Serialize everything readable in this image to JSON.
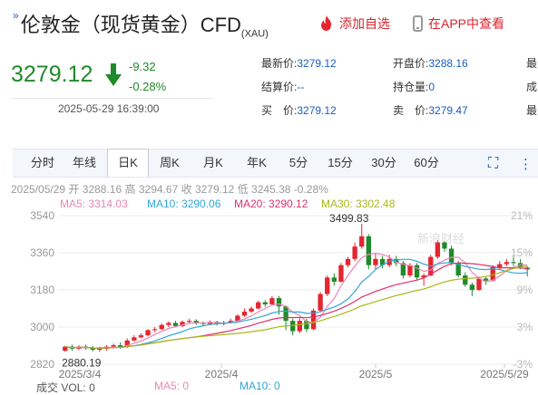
{
  "header": {
    "title": "伦敦金（现货黄金）CFD",
    "title_sub": "(XAU)",
    "add_favorite": "添加自选",
    "view_in_app": "在APP中查看"
  },
  "quote": {
    "price": "3279.12",
    "change": "-9.32",
    "change_pct": "-0.28%",
    "datetime": "2025-05-29 16:39:00",
    "fields": [
      {
        "label": "最新价:",
        "value": "3279.12"
      },
      {
        "label": "开盘价:",
        "value": "3288.16"
      },
      {
        "label": "最",
        "value": ""
      },
      {
        "label": "结算价:",
        "value": "--"
      },
      {
        "label": "持仓量:",
        "value": "0"
      },
      {
        "label": "成",
        "value": ""
      },
      {
        "label": "买　价:",
        "value": "3279.12"
      },
      {
        "label": "卖　价:",
        "value": "3279.47"
      },
      {
        "label": "最",
        "value": ""
      }
    ]
  },
  "tabs": [
    "分时",
    "年线",
    "日K",
    "周K",
    "月K",
    "年K",
    "5分",
    "15分",
    "30分",
    "60分"
  ],
  "active_tab": "日K",
  "ohlc_line": {
    "date": "2025/05/29",
    "open_label": "开",
    "open": "3288.16",
    "high_label": "高",
    "high": "3294.67",
    "close_label": "收",
    "close": "3279.12",
    "low_label": "低",
    "low": "3245.38",
    "pct": "-0.28%"
  },
  "ma": [
    {
      "label": "MA5:",
      "value": "3314.03",
      "color": "#e986b8"
    },
    {
      "label": "MA10:",
      "value": "3290.06",
      "color": "#2fa6d8"
    },
    {
      "label": "MA20:",
      "value": "3290.12",
      "color": "#e0306a"
    },
    {
      "label": "MA30:",
      "value": "3302.48",
      "color": "#a8b818"
    }
  ],
  "volume": {
    "label": "成交",
    "vol_label": "VOL:",
    "vol": "0",
    "ma5_label": "MA5:",
    "ma5": "0",
    "ma10_label": "MA10:",
    "ma10": "0"
  },
  "watermark": "新浪财经",
  "chart_data": {
    "type": "candlestick",
    "y_ticks": [
      "3540",
      "3360",
      "3180",
      "3000",
      "2820"
    ],
    "y_pct_ticks": [
      "21%",
      "15%",
      "9%",
      "3%",
      "-3%"
    ],
    "x_ticks": [
      "2025/3/4",
      "2025/4",
      "2025/5",
      "2025/5/29"
    ],
    "ylim": [
      2820,
      3540
    ],
    "max_label": "3499.83",
    "min_label": "2880.19",
    "up_color": "#e3262f",
    "down_color": "#1f8a2a",
    "candles": [
      [
        2885,
        2905,
        2880,
        2910
      ],
      [
        2905,
        2895,
        2885,
        2915
      ],
      [
        2895,
        2905,
        2888,
        2912
      ],
      [
        2905,
        2900,
        2890,
        2915
      ],
      [
        2900,
        2890,
        2882,
        2908
      ],
      [
        2890,
        2896,
        2880,
        2905
      ],
      [
        2895,
        2905,
        2885,
        2912
      ],
      [
        2905,
        2912,
        2898,
        2920
      ],
      [
        2912,
        2905,
        2895,
        2925
      ],
      [
        2905,
        2935,
        2900,
        2945
      ],
      [
        2935,
        2950,
        2928,
        2960
      ],
      [
        2950,
        2960,
        2945,
        2970
      ],
      [
        2960,
        2985,
        2955,
        2990
      ],
      [
        2985,
        2990,
        2975,
        3000
      ],
      [
        2990,
        3010,
        2985,
        3018
      ],
      [
        3010,
        3020,
        3000,
        3028
      ],
      [
        3020,
        3005,
        2998,
        3030
      ],
      [
        3005,
        3025,
        3000,
        3032
      ],
      [
        3025,
        3030,
        3015,
        3040
      ],
      [
        3030,
        3020,
        3010,
        3038
      ],
      [
        3020,
        3015,
        3005,
        3028
      ],
      [
        3015,
        3025,
        3010,
        3032
      ],
      [
        3025,
        3015,
        3008,
        3030
      ],
      [
        3015,
        3022,
        3008,
        3030
      ],
      [
        3022,
        3030,
        3018,
        3040
      ],
      [
        3030,
        3055,
        3025,
        3062
      ],
      [
        3055,
        3075,
        3050,
        3090
      ],
      [
        3075,
        3090,
        3068,
        3100
      ],
      [
        3090,
        3120,
        3085,
        3128
      ],
      [
        3120,
        3110,
        3098,
        3130
      ],
      [
        3110,
        3140,
        3105,
        3150
      ],
      [
        3140,
        3100,
        3060,
        3150
      ],
      [
        3100,
        3030,
        2985,
        3105
      ],
      [
        3030,
        2980,
        2960,
        3040
      ],
      [
        2980,
        3030,
        2970,
        3045
      ],
      [
        3030,
        2990,
        2975,
        3040
      ],
      [
        2990,
        3080,
        2985,
        3090
      ],
      [
        3080,
        3160,
        3075,
        3170
      ],
      [
        3160,
        3240,
        3150,
        3250
      ],
      [
        3240,
        3220,
        3200,
        3260
      ],
      [
        3220,
        3300,
        3215,
        3310
      ],
      [
        3300,
        3330,
        3290,
        3340
      ],
      [
        3330,
        3390,
        3320,
        3410
      ],
      [
        3390,
        3440,
        3380,
        3500
      ],
      [
        3440,
        3300,
        3280,
        3450
      ],
      [
        3300,
        3330,
        3280,
        3360
      ],
      [
        3330,
        3300,
        3285,
        3345
      ],
      [
        3300,
        3330,
        3290,
        3350
      ],
      [
        3330,
        3310,
        3295,
        3345
      ],
      [
        3310,
        3250,
        3235,
        3320
      ],
      [
        3250,
        3300,
        3240,
        3310
      ],
      [
        3300,
        3240,
        3230,
        3310
      ],
      [
        3240,
        3250,
        3200,
        3260
      ],
      [
        3250,
        3340,
        3245,
        3350
      ],
      [
        3340,
        3410,
        3330,
        3420
      ],
      [
        3410,
        3380,
        3365,
        3415
      ],
      [
        3380,
        3310,
        3300,
        3395
      ],
      [
        3310,
        3250,
        3240,
        3320
      ],
      [
        3250,
        3205,
        3195,
        3265
      ],
      [
        3205,
        3180,
        3150,
        3215
      ],
      [
        3180,
        3235,
        3175,
        3245
      ],
      [
        3235,
        3225,
        3205,
        3245
      ],
      [
        3225,
        3290,
        3220,
        3300
      ],
      [
        3290,
        3305,
        3280,
        3320
      ],
      [
        3305,
        3315,
        3295,
        3330
      ],
      [
        3315,
        3310,
        3295,
        3340
      ],
      [
        3310,
        3290,
        3280,
        3330
      ],
      [
        3288,
        3279,
        3245,
        3295
      ]
    ]
  }
}
